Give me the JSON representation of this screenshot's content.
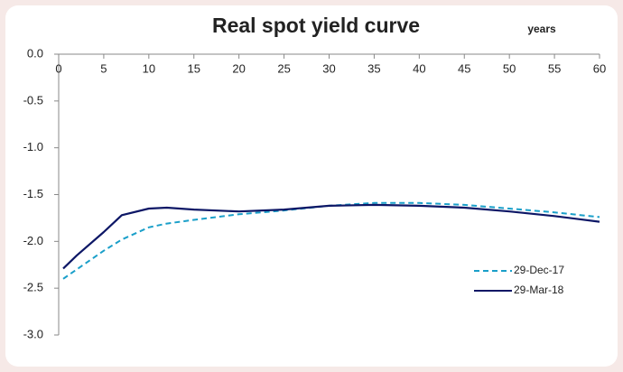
{
  "chart_data": {
    "type": "line",
    "title": "Real spot yield curve",
    "x_label": "years",
    "x": [
      0.5,
      2,
      5,
      7,
      10,
      12,
      15,
      20,
      25,
      30,
      35,
      40,
      45,
      50,
      55,
      60
    ],
    "series": [
      {
        "name": "29-Dec-17",
        "color": "#1a9fc9",
        "dash": true,
        "values": [
          -2.4,
          -2.3,
          -2.1,
          -1.98,
          -1.85,
          -1.81,
          -1.77,
          -1.71,
          -1.67,
          -1.62,
          -1.59,
          -1.59,
          -1.61,
          -1.65,
          -1.69,
          -1.74
        ]
      },
      {
        "name": "29-Mar-18",
        "color": "#0d1766",
        "dash": false,
        "values": [
          -2.29,
          -2.15,
          -1.9,
          -1.72,
          -1.65,
          -1.64,
          -1.66,
          -1.68,
          -1.66,
          -1.62,
          -1.61,
          -1.62,
          -1.64,
          -1.68,
          -1.73,
          -1.79
        ]
      }
    ],
    "xlim": [
      0,
      60
    ],
    "xticks": [
      0,
      5,
      10,
      15,
      20,
      25,
      30,
      35,
      40,
      45,
      50,
      55,
      60
    ],
    "ylim": [
      -3,
      0
    ],
    "yticks": [
      {
        "value": 0,
        "label": "0.0"
      },
      -0.5,
      {
        "value": -1,
        "label": "-1.0"
      },
      -1.5,
      {
        "value": -2,
        "label": "-2.0"
      },
      -2.5,
      {
        "value": -3,
        "label": "-3.0"
      }
    ],
    "legend": "lower right"
  }
}
